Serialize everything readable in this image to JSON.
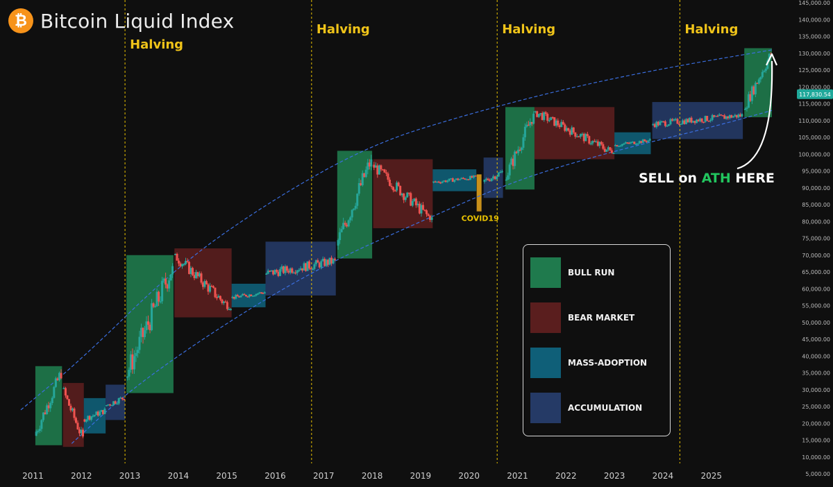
{
  "title": "Bitcoin Liquid Index",
  "logo_glyph": "₿",
  "colors": {
    "background": "#0f0f0f",
    "bull": "#1f7a4d",
    "bear": "#5a1e1e",
    "mass": "#0f5f78",
    "accum": "#253a66",
    "halving_line": "#e9c200",
    "channel": "#3b6fe0",
    "price_tag": "#1fa89a",
    "up_candle": "#26a69a",
    "down_candle": "#ef5350",
    "covid": "#c8901a"
  },
  "chart_data": {
    "type": "candlestick",
    "title": "Bitcoin Liquid Index",
    "x_ticks": [
      "2011",
      "2012",
      "2013",
      "2014",
      "2015",
      "2016",
      "2017",
      "2018",
      "2019",
      "2020",
      "2021",
      "2022",
      "2023",
      "2024",
      "2025"
    ],
    "x_range": [
      2010.75,
      2026.25
    ],
    "y_ticks": [
      "5,000.00",
      "10,000.00",
      "15,000.00",
      "20,000.00",
      "25,000.00",
      "30,000.00",
      "35,000.00",
      "40,000.00",
      "45,000.00",
      "50,000.00",
      "55,000.00",
      "60,000.00",
      "65,000.00",
      "70,000.00",
      "75,000.00",
      "80,000.00",
      "85,000.00",
      "90,000.00",
      "95,000.00",
      "100,000.00",
      "105,000.00",
      "110,000.00",
      "115,000.00",
      "120,000.00",
      "125,000.00",
      "130,000.00",
      "135,000.00",
      "140,000.00",
      "145,000.00"
    ],
    "y_range": [
      5000,
      145000
    ],
    "current_price": "117,830.54",
    "current_value": 117830,
    "halvings": [
      {
        "x": 2012.9,
        "label": "Halving"
      },
      {
        "x": 2016.75,
        "label": "Halving"
      },
      {
        "x": 2020.58,
        "label": "Halving"
      },
      {
        "x": 2024.35,
        "label": "Halving"
      }
    ],
    "phases": [
      {
        "type": "bull",
        "x0": 2011.05,
        "x1": 2011.6,
        "y0": 13500,
        "y1": 37000
      },
      {
        "type": "bear",
        "x0": 2011.62,
        "x1": 2012.05,
        "y0": 13000,
        "y1": 32000
      },
      {
        "type": "mass",
        "x0": 2012.05,
        "x1": 2012.5,
        "y0": 17000,
        "y1": 27500
      },
      {
        "type": "accum",
        "x0": 2012.5,
        "x1": 2012.9,
        "y0": 21000,
        "y1": 31500
      },
      {
        "type": "bull",
        "x0": 2012.93,
        "x1": 2013.9,
        "y0": 29000,
        "y1": 70000
      },
      {
        "type": "bear",
        "x0": 2013.92,
        "x1": 2015.1,
        "y0": 51500,
        "y1": 72000
      },
      {
        "type": "mass",
        "x0": 2015.1,
        "x1": 2015.8,
        "y0": 54500,
        "y1": 61500
      },
      {
        "type": "accum",
        "x0": 2015.8,
        "x1": 2017.25,
        "y0": 58000,
        "y1": 74000
      },
      {
        "type": "bull",
        "x0": 2017.28,
        "x1": 2018.0,
        "y0": 69000,
        "y1": 101000
      },
      {
        "type": "bear",
        "x0": 2018.02,
        "x1": 2019.25,
        "y0": 78000,
        "y1": 98500
      },
      {
        "type": "mass",
        "x0": 2019.25,
        "x1": 2020.15,
        "y0": 89000,
        "y1": 95500
      },
      {
        "type": "accum",
        "x0": 2020.3,
        "x1": 2020.7,
        "y0": 87000,
        "y1": 99000
      },
      {
        "type": "bull",
        "x0": 2020.75,
        "x1": 2021.35,
        "y0": 89500,
        "y1": 114000
      },
      {
        "type": "bear",
        "x0": 2021.35,
        "x1": 2023.0,
        "y0": 98500,
        "y1": 114000
      },
      {
        "type": "mass",
        "x0": 2023.0,
        "x1": 2023.75,
        "y0": 100000,
        "y1": 106500
      },
      {
        "type": "accum",
        "x0": 2023.78,
        "x1": 2025.65,
        "y0": 104500,
        "y1": 115500
      },
      {
        "type": "bull",
        "x0": 2025.68,
        "x1": 2026.25,
        "y0": 111000,
        "y1": 131500
      }
    ],
    "covid_bar": {
      "x": 2020.2,
      "y0": 83000,
      "y1": 94000,
      "label": "COVID19"
    },
    "channel_upper": [
      [
        2010.75,
        24000
      ],
      [
        2012.0,
        39000
      ],
      [
        2014.0,
        67000
      ],
      [
        2016.0,
        87000
      ],
      [
        2018.0,
        103000
      ],
      [
        2020.0,
        112000
      ],
      [
        2022.0,
        119500
      ],
      [
        2024.0,
        125500
      ],
      [
        2026.25,
        131000
      ]
    ],
    "channel_lower": [
      [
        2011.8,
        14000
      ],
      [
        2013.0,
        30000
      ],
      [
        2015.0,
        50000
      ],
      [
        2017.0,
        67000
      ],
      [
        2019.0,
        80000
      ],
      [
        2021.0,
        92500
      ],
      [
        2023.0,
        101000
      ],
      [
        2025.0,
        108000
      ],
      [
        2026.25,
        113000
      ]
    ],
    "legend": [
      {
        "type": "bull",
        "label": "BULL RUN"
      },
      {
        "type": "bear",
        "label": "BEAR MARKET"
      },
      {
        "type": "mass",
        "label": "MASS-ADOPTION"
      },
      {
        "type": "accum",
        "label": "ACCUMULATION"
      }
    ]
  },
  "annotation": {
    "prefix": "SELL on ",
    "highlight": "ATH",
    "suffix": " HERE"
  }
}
